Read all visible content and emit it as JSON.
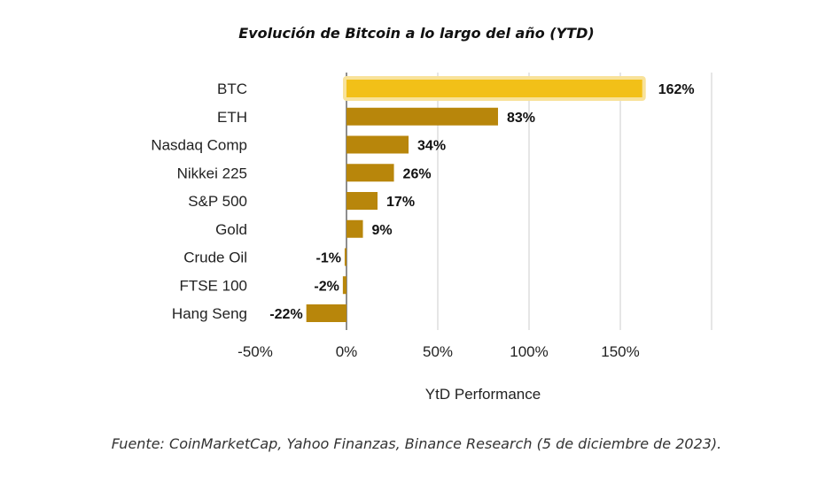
{
  "chart_data": {
    "type": "bar",
    "orientation": "horizontal",
    "title": "Evolución de Bitcoin a lo largo del año (YTD)",
    "xlabel": "YtD Performance",
    "ylabel": "",
    "categories": [
      "BTC",
      "ETH",
      "Nasdaq Comp",
      "Nikkei 225",
      "S&P 500",
      "Gold",
      "Crude Oil",
      "FTSE 100",
      "Hang Seng"
    ],
    "values": [
      162,
      83,
      34,
      26,
      17,
      9,
      -1,
      -2,
      -22
    ],
    "value_labels": [
      "162%",
      "83%",
      "34%",
      "26%",
      "17%",
      "9%",
      "-1%",
      "-2%",
      "-22%"
    ],
    "xlim": [
      -50,
      200
    ],
    "x_ticks": [
      -50,
      0,
      50,
      100,
      150
    ],
    "x_tick_labels": [
      "-50%",
      "0%",
      "50%",
      "100%",
      "150%"
    ],
    "grid": true,
    "highlight_category": "BTC",
    "colors": {
      "bar": "#b8860b",
      "highlight_bar": "#f2c018",
      "highlight_glow": "#f8e29a",
      "grid": "#cccccc",
      "zero_line": "#444444"
    }
  },
  "caption": "Fuente: CoinMarketCap, Yahoo Finanzas, Binance Research (5 de diciembre de 2023)."
}
